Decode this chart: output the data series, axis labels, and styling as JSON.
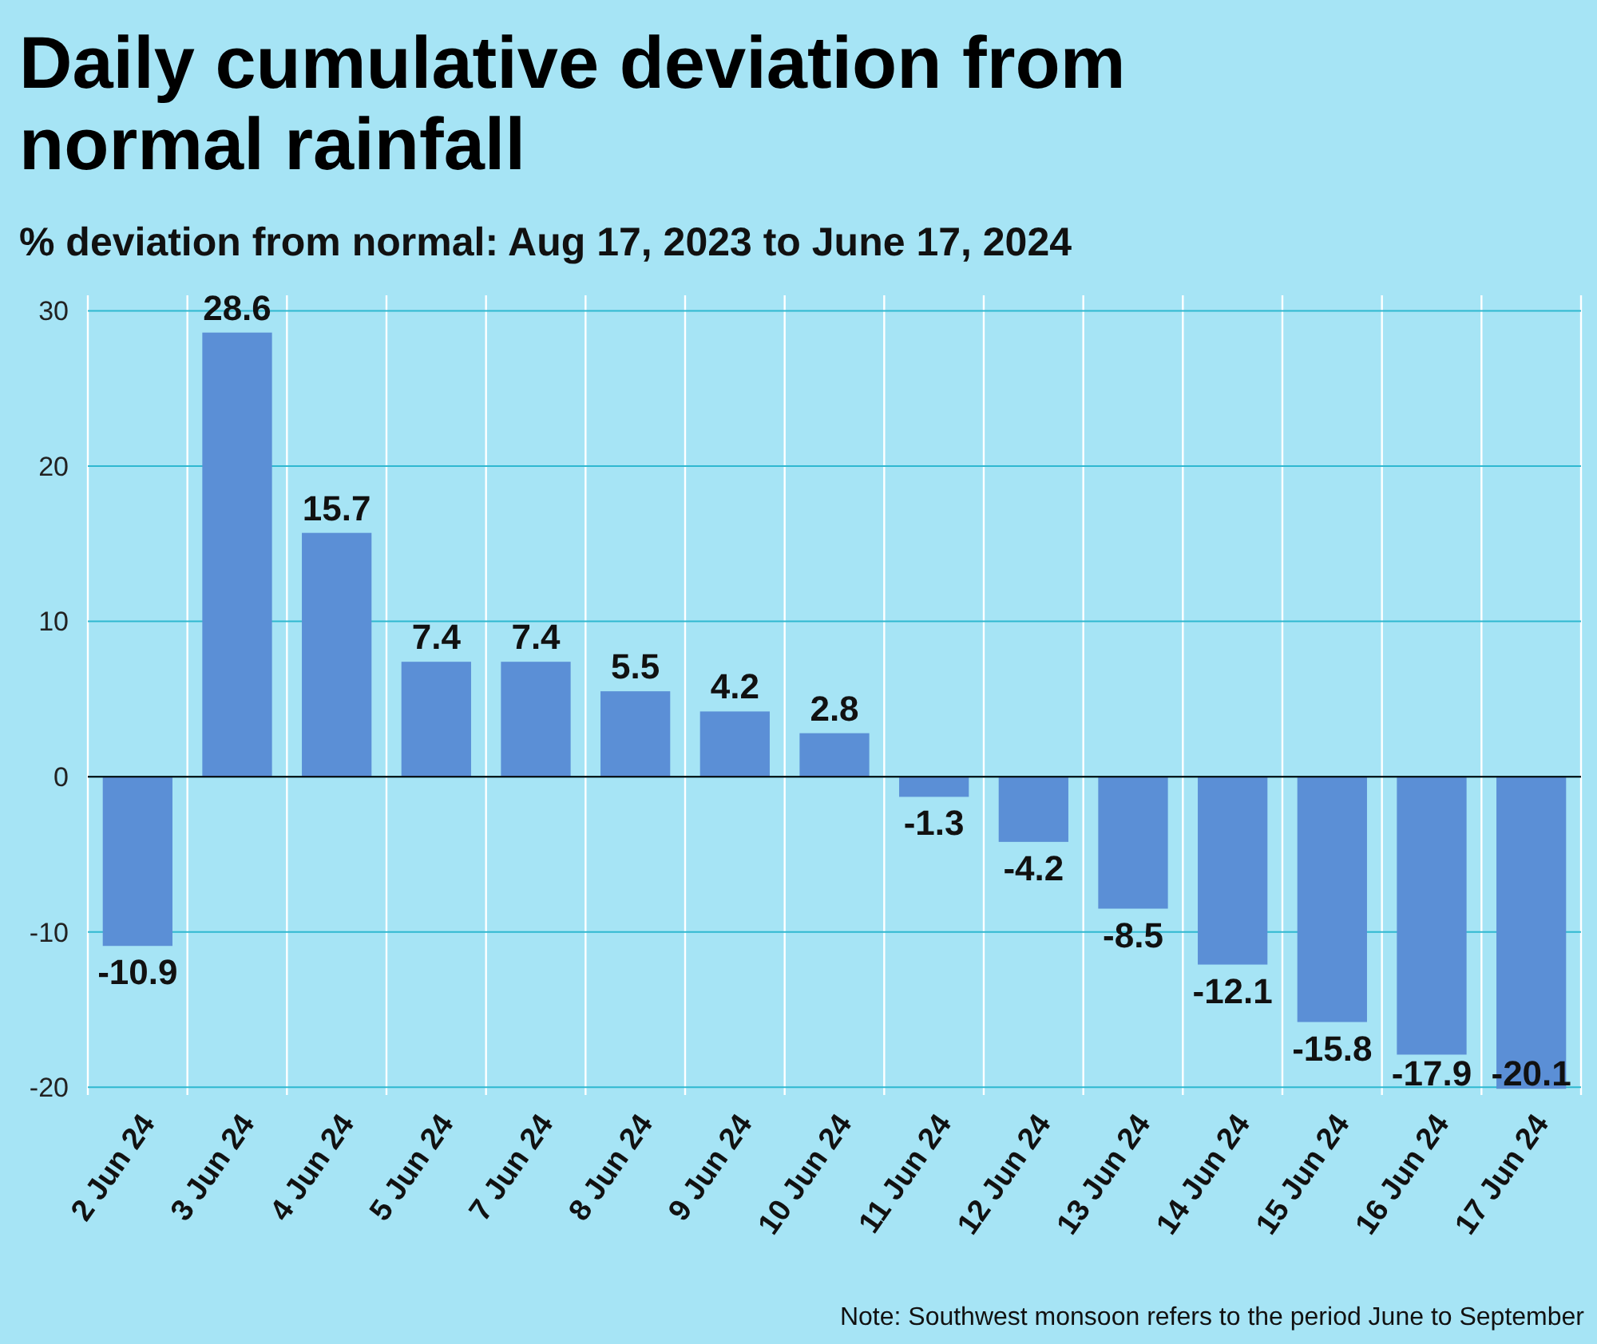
{
  "chart_data": {
    "type": "bar",
    "title": "Daily cumulative deviation from normal rainfall",
    "subtitle": "% deviation from normal: Aug 17, 2023 to June 17, 2024",
    "categories": [
      "2 Jun 24",
      "3 Jun 24",
      "4 Jun 24",
      "5 Jun 24",
      "7 Jun 24",
      "8 Jun 24",
      "9 Jun 24",
      "10 Jun 24",
      "11 Jun 24",
      "12 Jun 24",
      "13 Jun 24",
      "14 Jun 24",
      "15 Jun 24",
      "16 Jun 24",
      "17 Jun 24"
    ],
    "values": [
      -10.9,
      28.6,
      15.7,
      7.4,
      7.4,
      5.5,
      4.2,
      2.8,
      -1.3,
      -4.2,
      -8.5,
      -12.1,
      -15.8,
      -17.9,
      -20.1
    ],
    "color": "#5b8fd6",
    "ylim": [
      -20.5,
      31
    ],
    "yticks": [
      -20,
      -10,
      0,
      10,
      20,
      30
    ],
    "grid": true,
    "data_labels": true,
    "annotations": [
      "Note: Southwest monsoon refers to the period June to September"
    ]
  }
}
